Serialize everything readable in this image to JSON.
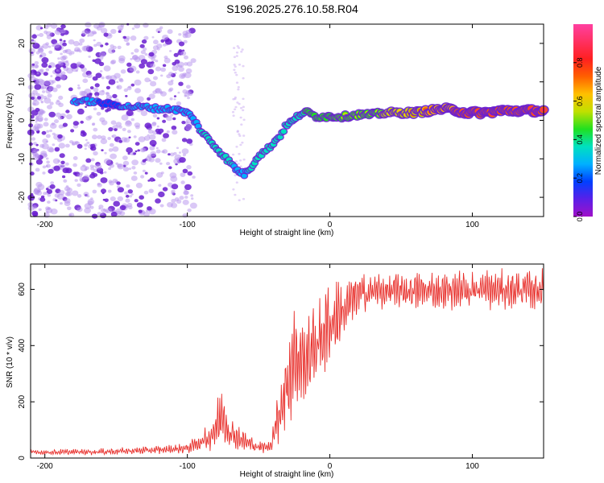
{
  "title": "S196.2025.276.10.58.R04",
  "colors": {
    "snr_line": "#e8302c",
    "axis": "#000000",
    "speckle": "#8a3ee6",
    "ridge_core": "#ff2a2a"
  },
  "chart_data": [
    {
      "type": "heatmap",
      "name": "spectrogram",
      "xlabel": "Height of straight line (km)",
      "ylabel": "Frequency (Hz)",
      "xlim": [
        -210,
        150
      ],
      "ylim": [
        -25,
        25
      ],
      "xticks": [
        -200,
        -100,
        0,
        100
      ],
      "xtick_labels": [
        "-200",
        "-100",
        "0",
        "100"
      ],
      "yticks": [
        20,
        10,
        0,
        -10,
        -20
      ],
      "ytick_labels": [
        "20",
        "10",
        "0",
        "-10",
        "-20"
      ],
      "colorbar": {
        "label": "Normalized spectral amplitude",
        "range": [
          0,
          1
        ],
        "ticks": [
          0,
          0.2,
          0.4,
          0.6,
          0.8
        ],
        "tick_labels": [
          "0.0",
          "0.2",
          "0.4",
          "0.6",
          "0.8"
        ],
        "palette": [
          "#a010c8",
          "#5a20e8",
          "#0040ff",
          "#00b0ff",
          "#00e0c0",
          "#20e020",
          "#c0e000",
          "#ffc000",
          "#ff6000",
          "#ff2020",
          "#ff3060",
          "#ff40a0"
        ]
      },
      "ridge": {
        "x": [
          -180,
          -170,
          -160,
          -150,
          -140,
          -130,
          -120,
          -110,
          -100,
          -95,
          -90,
          -85,
          -80,
          -75,
          -70,
          -65,
          -60,
          -55,
          -50,
          -45,
          -40,
          -35,
          -30,
          -25,
          -20,
          -15,
          -10,
          -5,
          0,
          10,
          20,
          30,
          40,
          50,
          60,
          70,
          80,
          90,
          95,
          100,
          110,
          120,
          130,
          140,
          150
        ],
        "y": [
          5,
          5,
          4.5,
          4,
          3.5,
          3.5,
          3,
          3,
          2,
          0,
          -3,
          -5,
          -7,
          -9,
          -11,
          -13,
          -14,
          -12,
          -9,
          -8,
          -6,
          -4,
          -1,
          0,
          2,
          2,
          1,
          1,
          1,
          1,
          1.5,
          1.5,
          2,
          2,
          2,
          2.5,
          3,
          2.5,
          2,
          2,
          2,
          2.5,
          2.5,
          2.5,
          2.5
        ],
        "amplitude": [
          0.15,
          0.15,
          0.12,
          0.12,
          0.15,
          0.15,
          0.2,
          0.25,
          0.25,
          0.25,
          0.3,
          0.3,
          0.3,
          0.3,
          0.3,
          0.25,
          0.25,
          0.3,
          0.35,
          0.3,
          0.35,
          0.3,
          0.35,
          0.4,
          0.4,
          0.45,
          0.45,
          0.45,
          0.5,
          0.5,
          0.5,
          0.55,
          0.6,
          0.65,
          0.7,
          0.75,
          0.85,
          0.9,
          0.95,
          0.95,
          0.9,
          0.95,
          0.95,
          0.95,
          0.95
        ]
      },
      "noise_until_x": -100
    },
    {
      "type": "line",
      "name": "snr",
      "xlabel": "Height of straight line (km)",
      "ylabel": "SNR (10 * v/v)",
      "xlim": [
        -210,
        150
      ],
      "ylim": [
        0,
        690
      ],
      "xticks": [
        -200,
        -100,
        0,
        100
      ],
      "xtick_labels": [
        "-200",
        "-100",
        "0",
        "100"
      ],
      "yticks": [
        0,
        200,
        400,
        600
      ],
      "ytick_labels": [
        "0",
        "200",
        "400",
        "600"
      ],
      "envelope": {
        "x": [
          -210,
          -160,
          -120,
          -100,
          -85,
          -75,
          -70,
          -60,
          -50,
          -42,
          -38,
          -30,
          -25,
          -20,
          -15,
          -10,
          -5,
          0,
          5,
          10,
          15,
          20,
          25,
          30,
          40,
          60,
          80,
          100,
          120,
          150
        ],
        "low": [
          10,
          10,
          12,
          15,
          20,
          25,
          30,
          20,
          15,
          20,
          30,
          80,
          150,
          180,
          200,
          230,
          260,
          300,
          360,
          420,
          460,
          500,
          510,
          520,
          520,
          520,
          520,
          520,
          520,
          520
        ],
        "high": [
          30,
          35,
          45,
          55,
          120,
          280,
          150,
          100,
          60,
          60,
          200,
          450,
          560,
          500,
          520,
          580,
          620,
          650,
          650,
          630,
          660,
          670,
          660,
          670,
          665,
          670,
          670,
          680,
          675,
          680
        ]
      }
    }
  ]
}
